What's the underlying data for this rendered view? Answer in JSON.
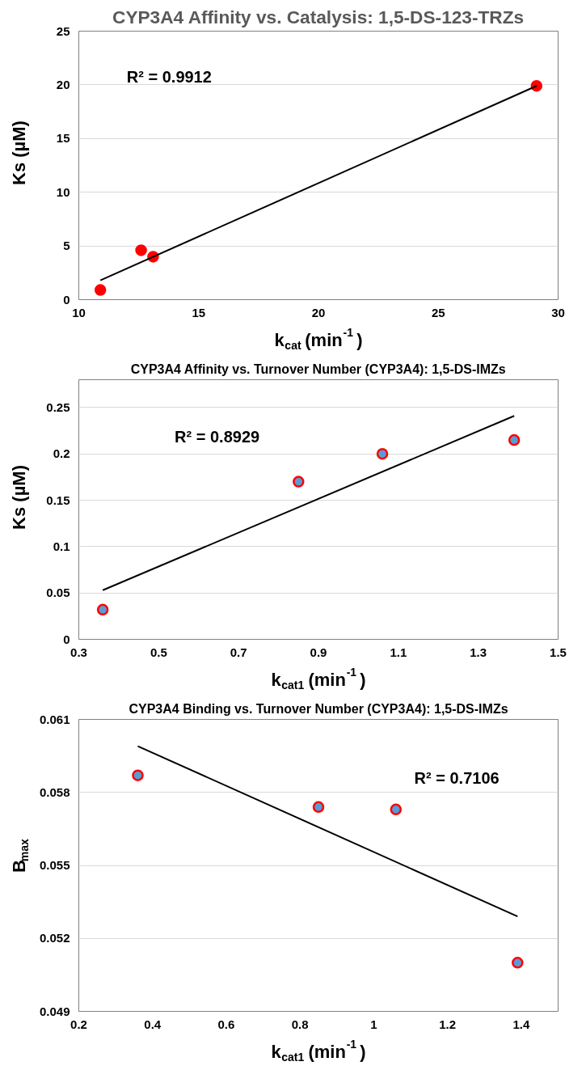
{
  "chart_data": [
    {
      "type": "scatter",
      "title": "CYP3A4 Affinity vs. Catalysis: 1,5-DS-123-TRZs",
      "xlabel": "k$_{cat}$ (min$^{-1}$)",
      "ylabel": "Ks (µM)",
      "series": [
        {
          "marker": "circle",
          "color": "#ff0000",
          "x": [
            10.9,
            12.6,
            13.1,
            29.1
          ],
          "values": [
            0.9,
            4.6,
            4.0,
            19.9
          ]
        },
        {
          "type": "line",
          "color": "#000000",
          "x": [
            10.9,
            29.1
          ],
          "values": [
            1.8,
            19.9
          ]
        }
      ],
      "xlim": [
        10,
        30
      ],
      "ylim": [
        0,
        25
      ],
      "xticks": [
        10,
        15,
        20,
        25,
        30
      ],
      "yticks": [
        0,
        5,
        10,
        15,
        20,
        25
      ],
      "grid": "y",
      "annotations": [
        "R² = 0.9912"
      ]
    },
    {
      "type": "scatter",
      "title": "CYP3A4 Affinity vs. Turnover Number (CYP3A4): 1,5-DS-IMZs",
      "xlabel": "k$_{cat1}$ (min$^{-1}$)",
      "ylabel": "Ks (µM)",
      "series": [
        {
          "marker": "circle",
          "color": "#5b9bd5",
          "x": [
            0.36,
            0.85,
            1.06,
            1.39
          ],
          "values": [
            0.032,
            0.17,
            0.2,
            0.215
          ]
        },
        {
          "type": "line",
          "color": "#000000",
          "x": [
            0.36,
            1.39
          ],
          "values": [
            0.053,
            0.241
          ]
        }
      ],
      "xlim": [
        0.3,
        1.5
      ],
      "ylim": [
        0,
        0.28
      ],
      "xticks": [
        0.3,
        0.5,
        0.7,
        0.9,
        1.1,
        1.3,
        1.5
      ],
      "yticks": [
        0,
        0.05,
        0.1,
        0.15,
        0.2,
        0.25
      ],
      "grid": "y",
      "annotations": [
        "R² = 0.8929"
      ]
    },
    {
      "type": "scatter",
      "title": "CYP3A4 Binding vs. Turnover Number (CYP3A4): 1,5-DS-IMZs",
      "xlabel": "k$_{cat1}$ (min$^{-1}$)",
      "ylabel": "B$_{max}$",
      "series": [
        {
          "marker": "circle",
          "color": "#5b9bd5",
          "x": [
            0.36,
            0.85,
            1.06,
            1.39
          ],
          "values": [
            0.0587,
            0.0574,
            0.0573,
            0.051
          ]
        },
        {
          "type": "line",
          "color": "#000000",
          "x": [
            0.36,
            1.39
          ],
          "values": [
            0.0599,
            0.0529
          ]
        }
      ],
      "xlim": [
        0.2,
        1.5
      ],
      "ylim": [
        0.049,
        0.061
      ],
      "xticks": [
        0.2,
        0.4,
        0.6,
        0.8,
        1,
        1.2,
        1.4
      ],
      "yticks": [
        0.049,
        0.052,
        0.055,
        0.058,
        0.061
      ],
      "grid": "y",
      "annotations": [
        "R² = 0.7106"
      ]
    }
  ]
}
